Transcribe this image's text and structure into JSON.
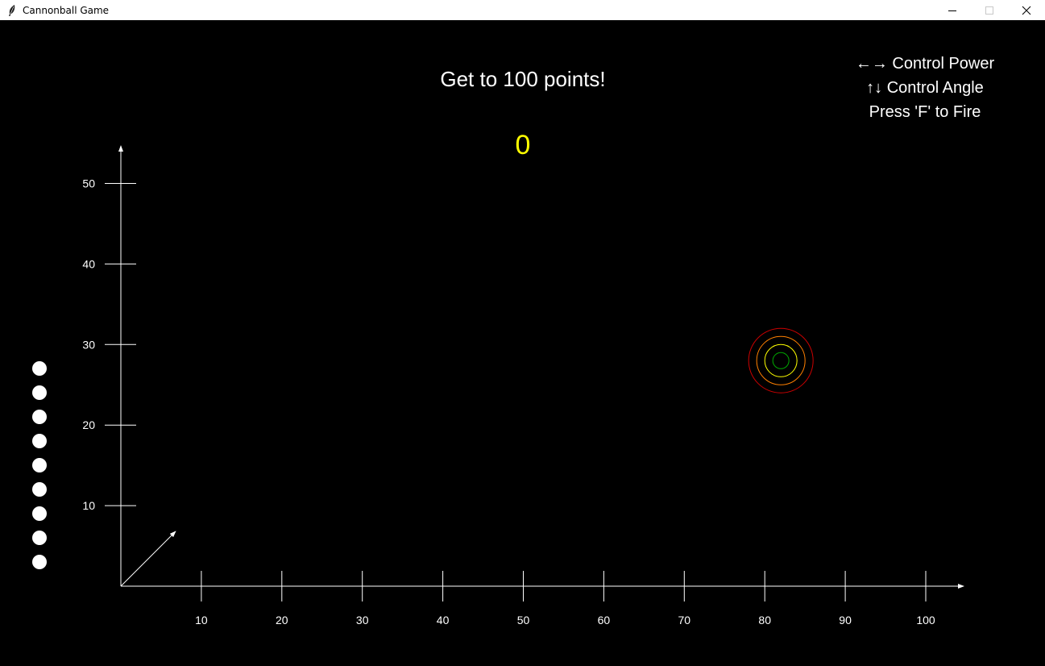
{
  "window": {
    "title": "Cannonball Game",
    "icons": [
      "feather-icon",
      "minimize-icon",
      "maximize-icon",
      "close-icon"
    ]
  },
  "game": {
    "objective": "Get to 100 points!",
    "score": "0",
    "score_color": "#ffff00"
  },
  "instructions": {
    "power": "←→  Control Power",
    "angle": "↑↓ Control Angle",
    "fire": "Press 'F' to Fire"
  },
  "axes": {
    "x_ticks": [
      "10",
      "20",
      "30",
      "40",
      "50",
      "60",
      "70",
      "80",
      "90",
      "100"
    ],
    "y_ticks": [
      "10",
      "20",
      "30",
      "40",
      "50"
    ]
  },
  "cannonballs_remaining": 9,
  "aim": {
    "angle_deg": 45
  },
  "target": {
    "x": 82,
    "y": 28,
    "ring_colors": [
      "#cc0000",
      "#ff8000",
      "#ffff00",
      "#00aa00"
    ]
  }
}
